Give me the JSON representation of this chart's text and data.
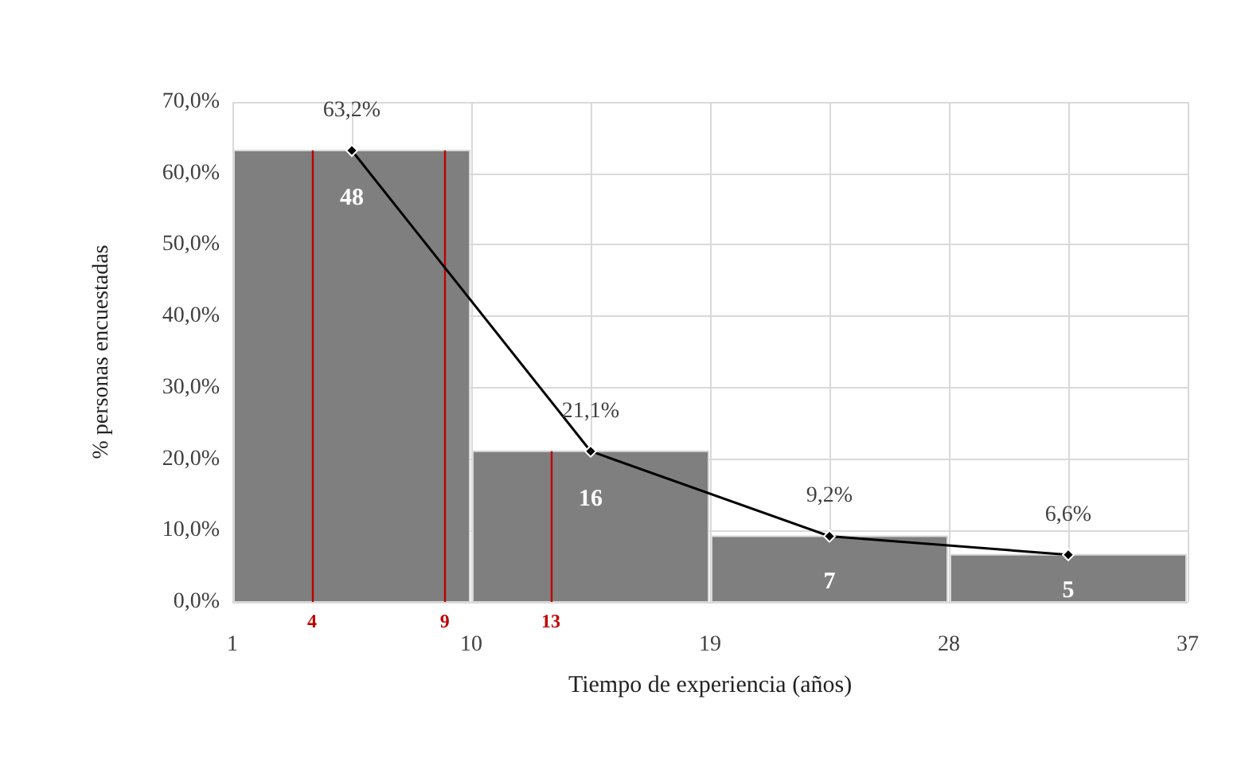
{
  "chart_data": {
    "type": "histogram",
    "xlabel": "Tiempo de experiencia (años)",
    "ylabel": "% personas encuestadas",
    "bins": [
      1,
      10,
      19,
      28,
      37
    ],
    "series": [
      {
        "color": "#7f7f7f",
        "values": [
          63.2,
          21.1,
          9.2,
          6.6
        ]
      },
      {
        "type": "line",
        "color": "#000000",
        "x": [
          5.5,
          14.5,
          23.5,
          32.5
        ],
        "values": [
          63.2,
          21.1,
          9.2,
          6.6
        ],
        "value_labels": [
          "63,2%",
          "21,1%",
          "9,2%",
          "6,6%"
        ],
        "marker": "diamond"
      }
    ],
    "xlim": [
      1,
      37
    ],
    "xticks": [
      1,
      {
        "value": 5.5,
        "label": null
      },
      10,
      {
        "value": 14.5,
        "label": null
      },
      19,
      {
        "value": 23.5,
        "label": null
      },
      28,
      {
        "value": 32.5,
        "label": null
      },
      37
    ],
    "ylim": [
      0,
      70
    ],
    "yticks": [
      {
        "value": 0,
        "label": "0,0%"
      },
      {
        "value": 10,
        "label": "10,0%"
      },
      {
        "value": 20,
        "label": "20,0%"
      },
      {
        "value": 30,
        "label": "30,0%"
      },
      {
        "value": 40,
        "label": "40,0%"
      },
      {
        "value": 50,
        "label": "50,0%"
      },
      {
        "value": 60,
        "label": "60,0%"
      },
      {
        "value": 70,
        "label": "70,0%"
      }
    ],
    "ref_lines": [
      {
        "axis": "x",
        "value": 4,
        "label": "4",
        "color": "#c00000"
      },
      {
        "axis": "x",
        "value": 9,
        "label": "9",
        "color": "#c00000"
      },
      {
        "axis": "x",
        "value": 13,
        "label": "13",
        "color": "#c00000"
      }
    ],
    "annotations": [
      "48",
      "16",
      "7",
      "5"
    ],
    "grid": true
  }
}
